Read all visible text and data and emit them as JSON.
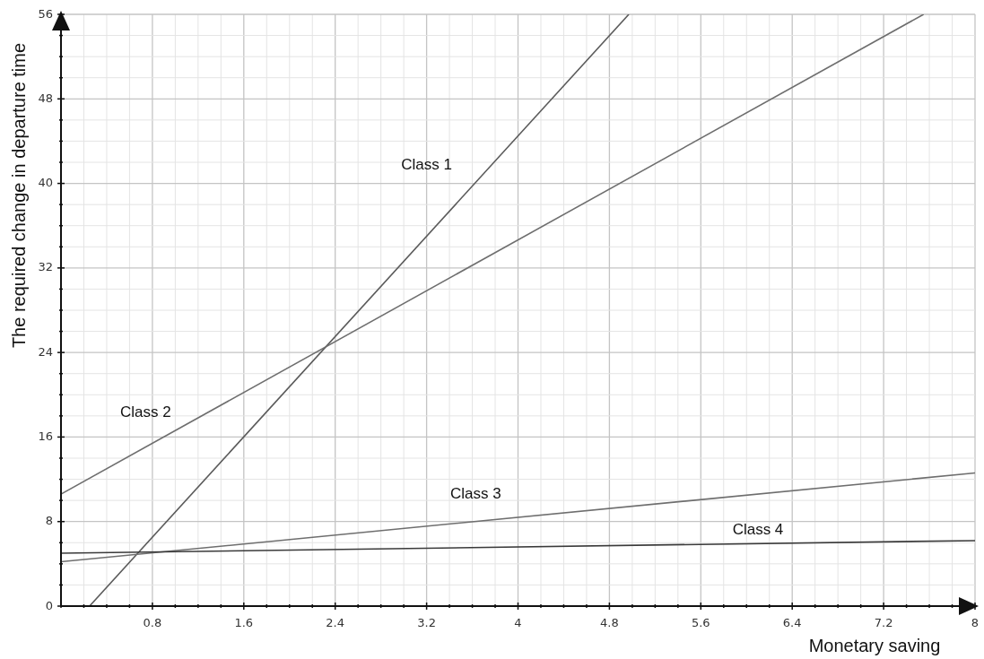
{
  "chart_data": {
    "type": "line",
    "xlabel": "Monetary saving",
    "ylabel": "The required change in departure time",
    "xlim": [
      0,
      8
    ],
    "ylim": [
      0,
      56
    ],
    "xticks": [
      {
        "value": 0,
        "label": null
      },
      {
        "value": 0.2,
        "label": null
      },
      {
        "value": 0.4,
        "label": null
      },
      {
        "value": 0.6,
        "label": null
      },
      0.8,
      {
        "value": 1,
        "label": null
      },
      {
        "value": 1.2,
        "label": null
      },
      {
        "value": 1.4,
        "label": null
      },
      1.6,
      {
        "value": 1.8,
        "label": null
      },
      {
        "value": 2,
        "label": null
      },
      {
        "value": 2.2,
        "label": null
      },
      2.4,
      {
        "value": 2.6,
        "label": null
      },
      {
        "value": 2.8,
        "label": null
      },
      {
        "value": 3,
        "label": null
      },
      3.2,
      {
        "value": 3.4,
        "label": null
      },
      {
        "value": 3.6,
        "label": null
      },
      {
        "value": 3.8,
        "label": null
      },
      4,
      {
        "value": 4.2,
        "label": null
      },
      {
        "value": 4.4,
        "label": null
      },
      {
        "value": 4.6,
        "label": null
      },
      4.8,
      {
        "value": 5,
        "label": null
      },
      {
        "value": 5.2,
        "label": null
      },
      {
        "value": 5.4,
        "label": null
      },
      5.6,
      {
        "value": 5.8,
        "label": null
      },
      {
        "value": 6,
        "label": null
      },
      {
        "value": 6.2,
        "label": null
      },
      6.4,
      {
        "value": 6.6,
        "label": null
      },
      {
        "value": 6.8,
        "label": null
      },
      {
        "value": 7,
        "label": null
      },
      7.2,
      {
        "value": 7.4,
        "label": null
      },
      {
        "value": 7.6,
        "label": null
      },
      {
        "value": 7.8,
        "label": null
      },
      8
    ],
    "yticks": [
      0,
      {
        "value": 2,
        "label": null
      },
      {
        "value": 4,
        "label": null
      },
      {
        "value": 6,
        "label": null
      },
      8,
      {
        "value": 10,
        "label": null
      },
      {
        "value": 12,
        "label": null
      },
      {
        "value": 14,
        "label": null
      },
      16,
      {
        "value": 18,
        "label": null
      },
      {
        "value": 20,
        "label": null
      },
      {
        "value": 22,
        "label": null
      },
      24,
      {
        "value": 26,
        "label": null
      },
      {
        "value": 28,
        "label": null
      },
      {
        "value": 30,
        "label": null
      },
      32,
      {
        "value": 34,
        "label": null
      },
      {
        "value": 36,
        "label": null
      },
      {
        "value": 38,
        "label": null
      },
      40,
      {
        "value": 42,
        "label": null
      },
      {
        "value": 44,
        "label": null
      },
      {
        "value": 46,
        "label": null
      },
      48,
      {
        "value": 50,
        "label": null
      },
      {
        "value": 52,
        "label": null
      },
      {
        "value": 54,
        "label": null
      },
      56
    ],
    "grid": true,
    "marker": "none",
    "line_style": "solid",
    "series": [
      {
        "name": "Class 1",
        "color": "#5a5a5a",
        "x": [
          0.25,
          4.97
        ],
        "values": [
          0,
          56
        ]
      },
      {
        "name": "Class 2",
        "color": "#6e6e6e",
        "x": [
          0,
          7.55
        ],
        "values": [
          10.6,
          56
        ]
      },
      {
        "name": "Class 3",
        "color": "#6e6e6e",
        "x": [
          0,
          8
        ],
        "values": [
          4.2,
          12.6
        ]
      },
      {
        "name": "Class 4",
        "color": "#3a3a3a",
        "x": [
          0,
          8
        ],
        "values": [
          5,
          6.2
        ]
      }
    ]
  }
}
